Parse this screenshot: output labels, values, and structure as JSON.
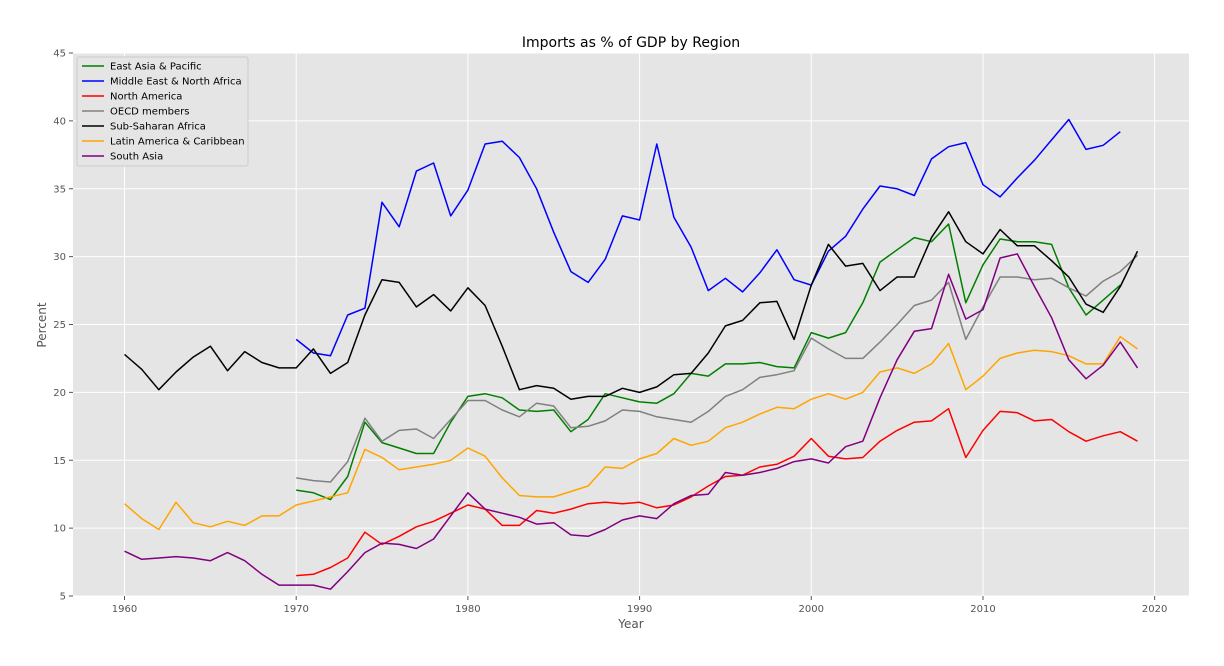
{
  "chart_data": {
    "type": "line",
    "title": "Imports as % of GDP by Region",
    "xlabel": "Year",
    "ylabel": "Percent",
    "xlim": [
      1957,
      2022
    ],
    "ylim": [
      5,
      45
    ],
    "xticks": [
      1960,
      1970,
      1980,
      1990,
      2000,
      2010,
      2020
    ],
    "yticks": [
      5,
      10,
      15,
      20,
      25,
      30,
      35,
      40,
      45
    ],
    "grid": true,
    "background": "#e5e5e5",
    "legend_position": "top-left",
    "series": [
      {
        "name": "East Asia & Pacific",
        "color": "#008000",
        "start_year": 1970,
        "values": [
          12.8,
          12.6,
          12.1,
          13.8,
          17.8,
          16.3,
          15.9,
          15.5,
          15.5,
          17.8,
          19.7,
          19.9,
          19.6,
          18.7,
          18.6,
          18.7,
          17.1,
          18.0,
          19.9,
          19.6,
          19.3,
          19.2,
          19.9,
          21.4,
          21.2,
          22.1,
          22.1,
          22.2,
          21.9,
          21.8,
          24.4,
          24.0,
          24.4,
          26.6,
          29.6,
          30.5,
          31.4,
          31.1,
          32.4,
          26.6,
          29.4,
          31.3,
          31.1,
          31.1,
          30.9,
          27.7,
          25.7,
          26.8,
          27.9,
          null
        ]
      },
      {
        "name": "Middle East & North Africa",
        "color": "#0000ff",
        "start_year": 1970,
        "values": [
          23.9,
          22.9,
          22.7,
          25.7,
          26.2,
          34.0,
          32.2,
          36.3,
          36.9,
          33.0,
          34.9,
          38.3,
          38.5,
          37.3,
          35.0,
          31.8,
          28.9,
          28.1,
          29.8,
          33.0,
          32.7,
          38.3,
          32.9,
          30.7,
          27.5,
          28.4,
          27.4,
          28.8,
          30.5,
          28.3,
          27.9,
          30.4,
          31.5,
          33.5,
          35.2,
          35.0,
          34.5,
          37.2,
          38.1,
          38.4,
          35.3,
          34.4,
          35.8,
          37.1,
          38.6,
          40.1,
          37.9,
          38.2,
          39.2,
          null
        ]
      },
      {
        "name": "North America",
        "color": "#ff0000",
        "start_year": 1970,
        "values": [
          6.5,
          6.6,
          7.1,
          7.8,
          9.7,
          8.8,
          9.4,
          10.1,
          10.5,
          11.1,
          11.7,
          11.4,
          10.2,
          10.2,
          11.3,
          11.1,
          11.4,
          11.8,
          11.9,
          11.8,
          11.9,
          11.5,
          11.7,
          12.3,
          13.1,
          13.8,
          13.9,
          14.5,
          14.7,
          15.3,
          16.6,
          15.3,
          15.1,
          15.2,
          16.4,
          17.2,
          17.8,
          17.9,
          18.8,
          15.2,
          17.2,
          18.6,
          18.5,
          17.9,
          18.0,
          17.1,
          16.4,
          16.8,
          17.1,
          16.4
        ]
      },
      {
        "name": "OECD members",
        "color": "#808080",
        "start_year": 1970,
        "values": [
          13.7,
          13.5,
          13.4,
          14.9,
          18.1,
          16.4,
          17.2,
          17.3,
          16.6,
          18.0,
          19.4,
          19.4,
          18.7,
          18.2,
          19.2,
          19.0,
          17.4,
          17.5,
          17.9,
          18.7,
          18.6,
          18.2,
          18.0,
          17.8,
          18.6,
          19.7,
          20.2,
          21.1,
          21.3,
          21.6,
          24.0,
          23.2,
          22.5,
          22.5,
          23.7,
          25.0,
          26.4,
          26.8,
          28.1,
          23.9,
          26.3,
          28.5,
          28.5,
          28.3,
          28.4,
          27.7,
          27.1,
          28.2,
          28.9,
          30.1
        ]
      },
      {
        "name": "Sub-Saharan Africa",
        "color": "#000000",
        "start_year": 1960,
        "values": [
          22.8,
          21.7,
          20.2,
          21.5,
          22.6,
          23.4,
          21.6,
          23.0,
          22.2,
          21.8,
          21.8,
          23.2,
          21.4,
          22.2,
          25.7,
          28.3,
          28.1,
          26.3,
          27.2,
          26.0,
          27.7,
          26.4,
          23.4,
          20.2,
          20.5,
          20.3,
          19.5,
          19.7,
          19.7,
          20.3,
          20.0,
          20.4,
          21.3,
          21.4,
          22.9,
          24.9,
          25.3,
          26.6,
          26.7,
          23.9,
          27.9,
          30.9,
          29.3,
          29.5,
          27.5,
          28.5,
          28.5,
          31.4,
          33.3,
          31.1,
          30.2,
          32.0,
          30.8,
          30.8,
          29.7,
          28.5,
          26.5,
          25.9,
          27.8,
          30.4
        ]
      },
      {
        "name": "Latin America & Caribbean",
        "color": "#ffa500",
        "start_year": 1960,
        "values": [
          11.8,
          10.7,
          9.9,
          11.9,
          10.4,
          10.1,
          10.5,
          10.2,
          10.9,
          10.9,
          11.7,
          12.0,
          12.3,
          12.6,
          15.8,
          15.2,
          14.3,
          14.5,
          14.7,
          15.0,
          15.9,
          15.3,
          13.7,
          12.4,
          12.3,
          12.3,
          12.7,
          13.1,
          14.5,
          14.4,
          15.1,
          15.5,
          16.6,
          16.1,
          16.4,
          17.4,
          17.8,
          18.4,
          18.9,
          18.8,
          19.5,
          19.9,
          19.5,
          20.0,
          21.5,
          21.8,
          21.4,
          22.1,
          23.6,
          20.2,
          21.2,
          22.5,
          22.9,
          23.1,
          23.0,
          22.7,
          22.1,
          22.1,
          24.1,
          23.2
        ]
      },
      {
        "name": "South Asia",
        "color": "#800080",
        "start_year": 1960,
        "values": [
          8.3,
          7.7,
          7.8,
          7.9,
          7.8,
          7.6,
          8.2,
          7.6,
          6.6,
          5.8,
          5.8,
          5.8,
          5.5,
          6.8,
          8.2,
          8.9,
          8.8,
          8.5,
          9.2,
          10.9,
          12.6,
          11.4,
          11.1,
          10.8,
          10.3,
          10.4,
          9.5,
          9.4,
          9.9,
          10.6,
          10.9,
          10.7,
          11.8,
          12.4,
          12.5,
          14.1,
          13.9,
          14.1,
          14.4,
          14.9,
          15.1,
          14.8,
          16.0,
          16.4,
          19.6,
          22.4,
          24.5,
          24.7,
          28.7,
          25.4,
          26.1,
          29.9,
          30.2,
          27.8,
          25.5,
          22.4,
          21.0,
          22.0,
          23.7,
          21.8
        ]
      }
    ]
  }
}
